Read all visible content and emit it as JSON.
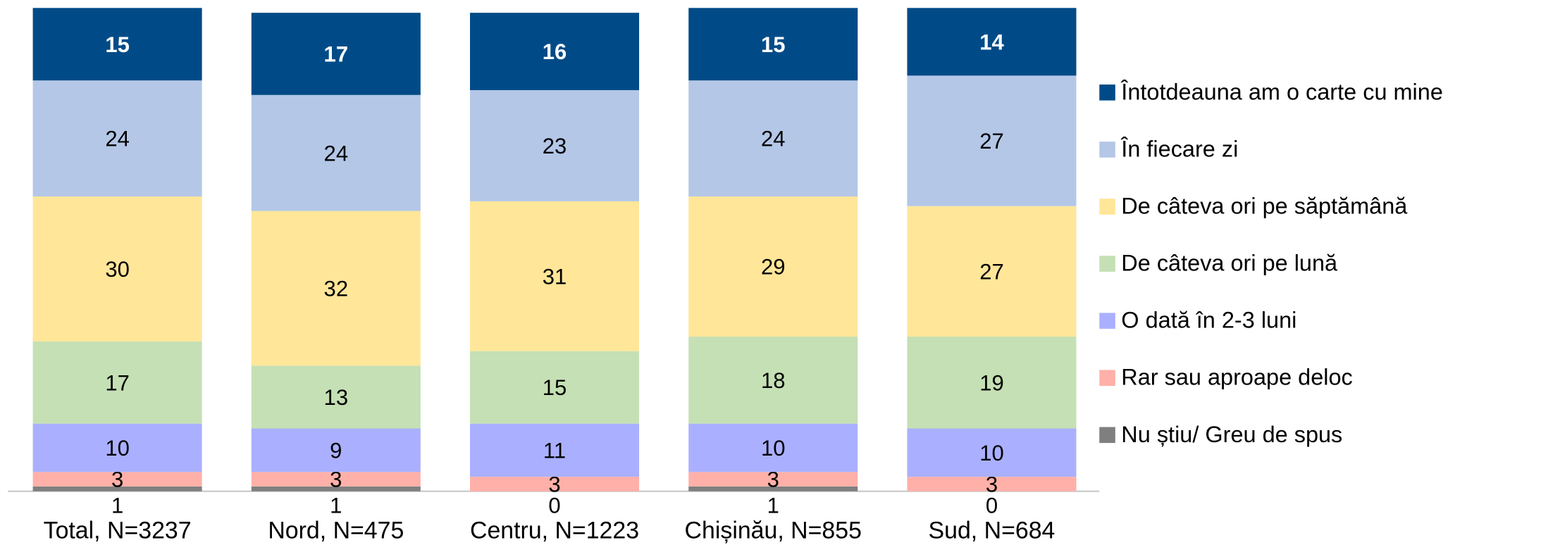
{
  "chart_data": {
    "type": "stacked_bar",
    "categories": [
      "Total, N=3237",
      "Nord, N=475",
      "Centru, N=1223",
      "Chișinău, N=855",
      "Sud, N=684"
    ],
    "series": [
      {
        "name": "Întotdeauna am o carte cu mine",
        "color": "#004b87",
        "values": [
          15,
          17,
          16,
          15,
          14
        ]
      },
      {
        "name": "În fiecare zi",
        "color": "#b4c7e7",
        "values": [
          24,
          24,
          23,
          24,
          27
        ]
      },
      {
        "name": "De câteva ori pe săptămână",
        "color": "#ffe699",
        "values": [
          30,
          32,
          31,
          29,
          27
        ]
      },
      {
        "name": "De câteva ori pe lună",
        "color": "#c5e0b4",
        "values": [
          17,
          13,
          15,
          18,
          19
        ]
      },
      {
        "name": "O dată în 2-3 luni",
        "color": "#aab0ff",
        "values": [
          10,
          9,
          11,
          10,
          10
        ]
      },
      {
        "name": "Rar sau aproape deloc",
        "color": "#ffb0a8",
        "values": [
          3,
          3,
          3,
          3,
          3
        ]
      },
      {
        "name": "Nu știu/ Greu de spus",
        "color": "#7f7f7f",
        "values": [
          1,
          1,
          0,
          1,
          0
        ]
      }
    ],
    "ylim": [
      0,
      100
    ]
  }
}
